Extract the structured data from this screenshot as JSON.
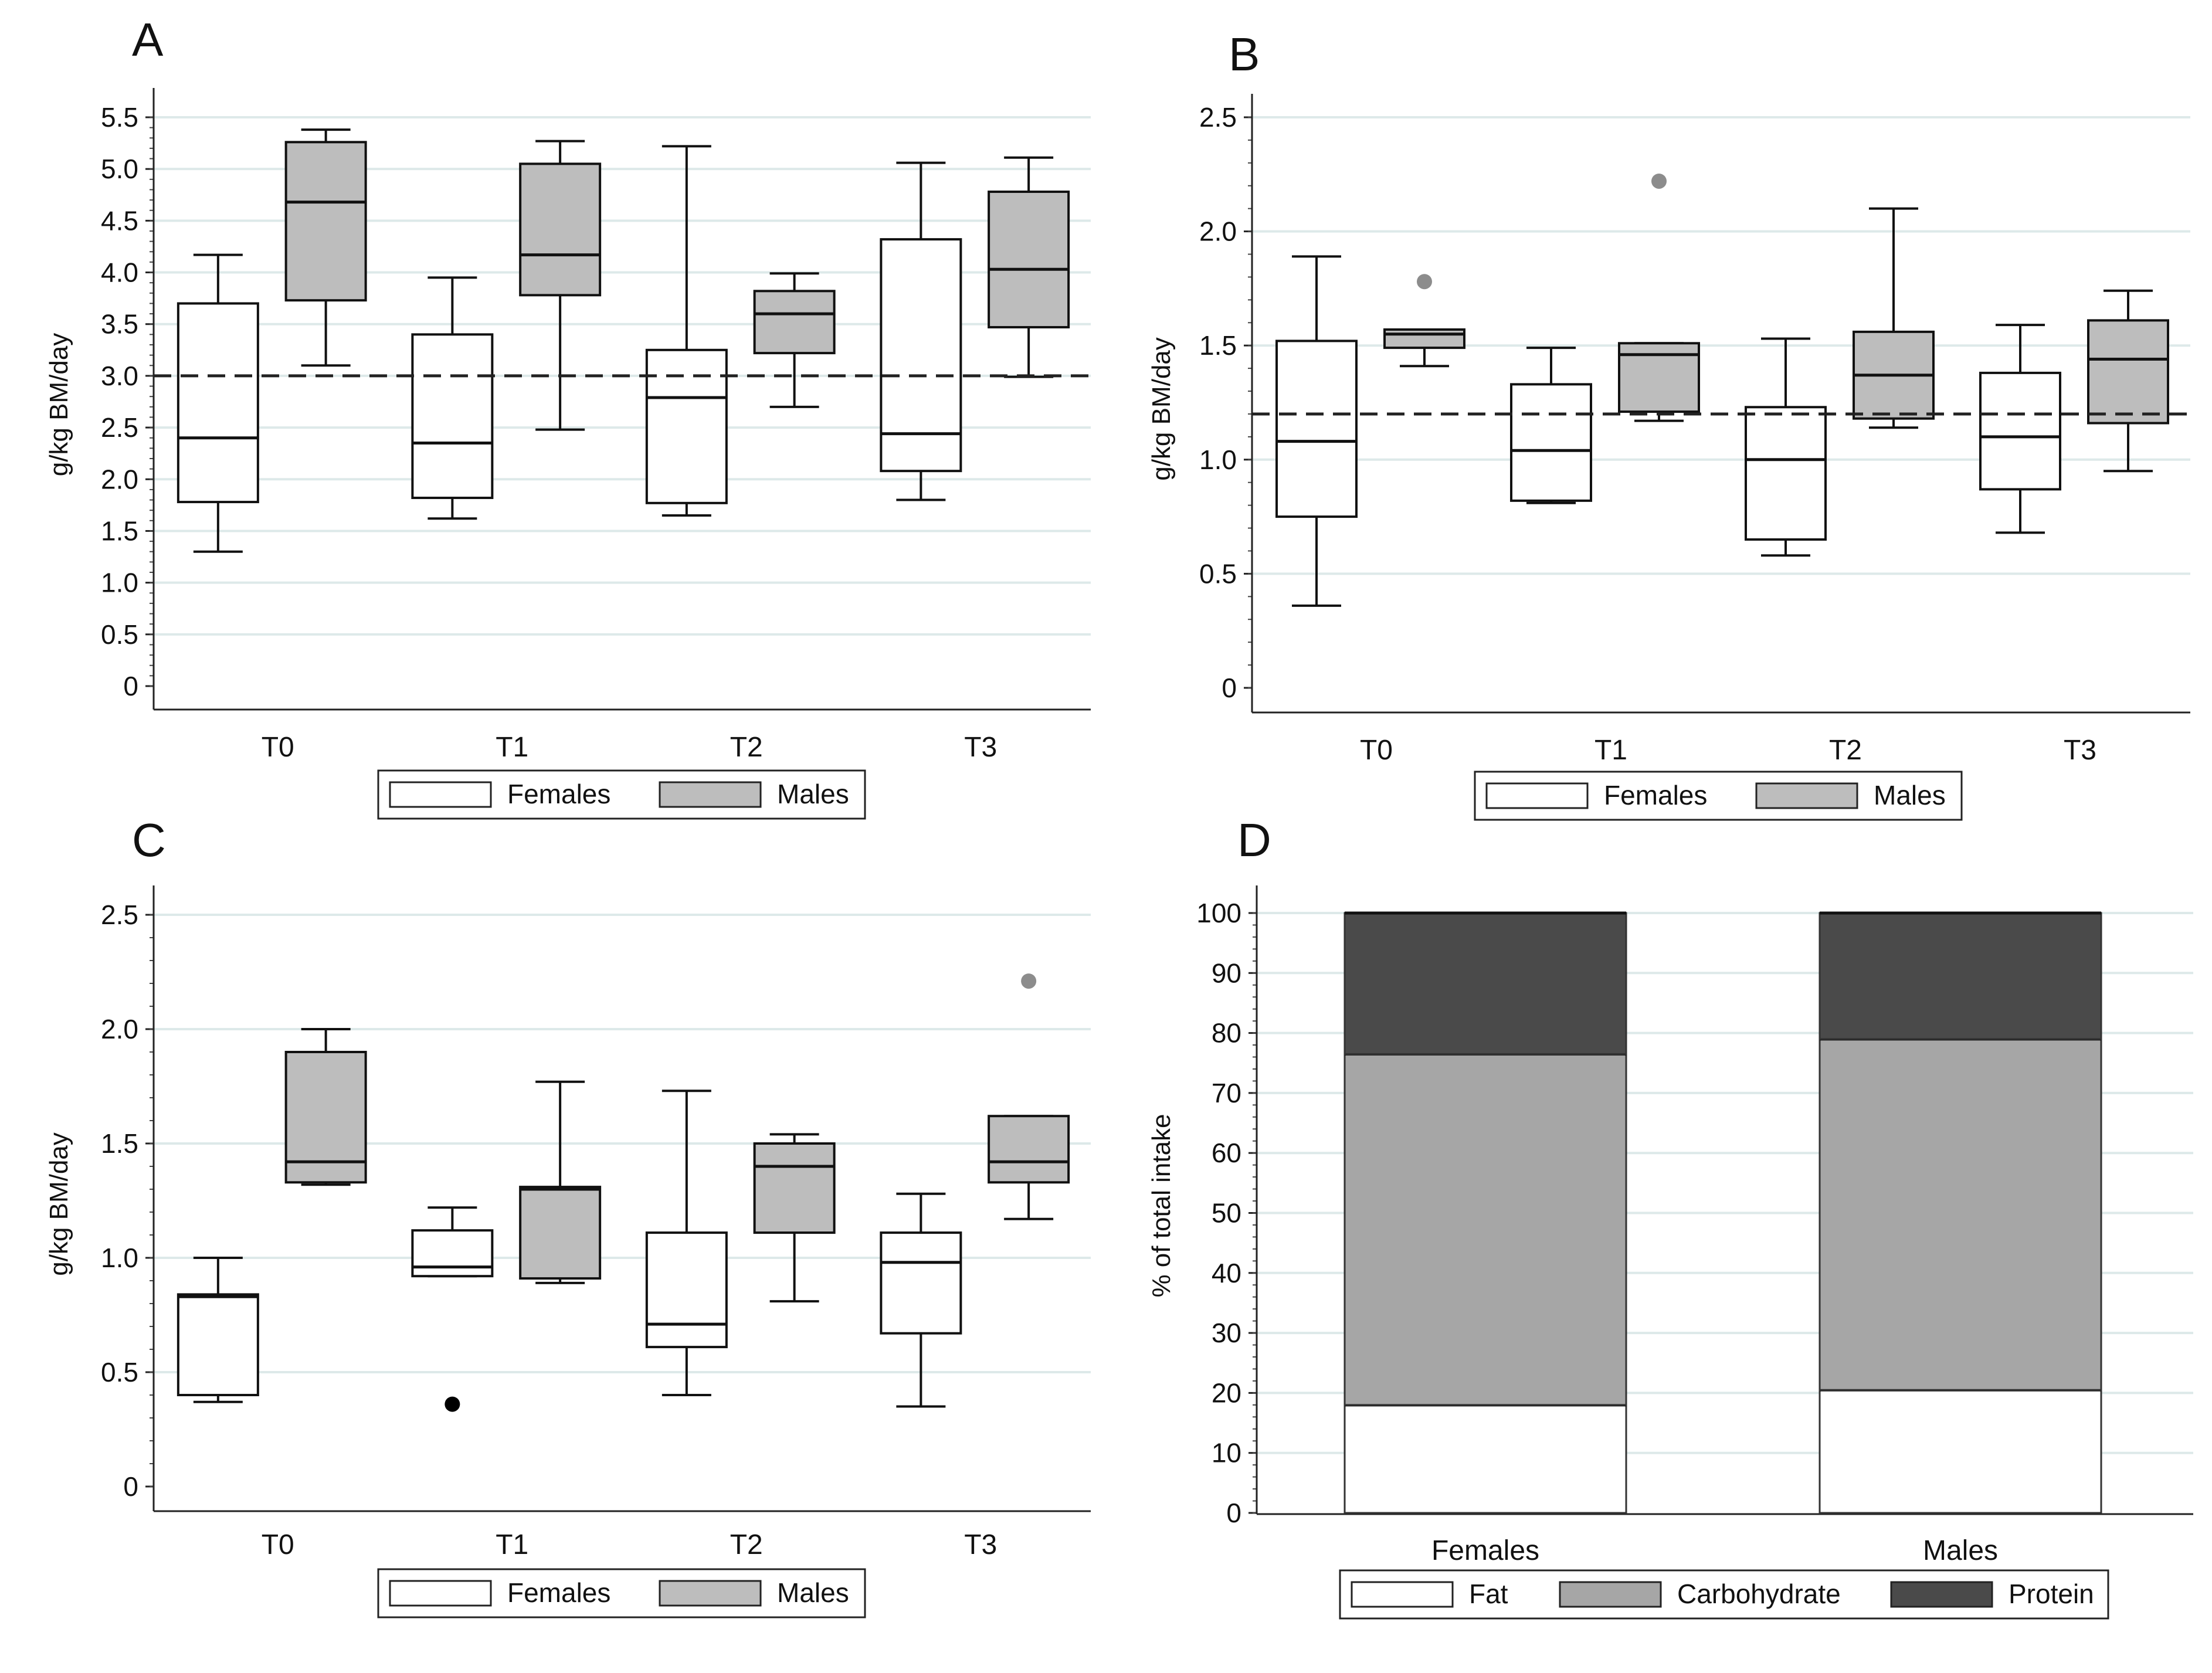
{
  "colors": {
    "female_fill": "#ffffff",
    "male_fill": "#bdbdbd",
    "fat": "#ffffff",
    "carbohydrate": "#a6a6a6",
    "protein": "#4a4a4a",
    "grid": "#dde9e9",
    "outlier_gray": "#8c8c8c",
    "outlier_black": "#000000"
  },
  "chart_data": [
    {
      "panel": "A",
      "type": "boxplot",
      "ylabel": "g/kg BM/day",
      "ylim": [
        0,
        5.5
      ],
      "yticks": [
        "0",
        "0.5",
        "1.0",
        "1.5",
        "2.0",
        "2.5",
        "3.0",
        "3.5",
        "4.0",
        "4.5",
        "5.0",
        "5.5"
      ],
      "reference_line": 3.0,
      "categories": [
        "T0",
        "T1",
        "T2",
        "T3"
      ],
      "legend": [
        "Females",
        "Males"
      ],
      "series": [
        {
          "name": "Females",
          "boxes": [
            {
              "min": 1.3,
              "q1": 1.78,
              "median": 2.4,
              "q3": 3.7,
              "max": 4.17,
              "outliers": []
            },
            {
              "min": 1.62,
              "q1": 1.82,
              "median": 2.35,
              "q3": 3.4,
              "max": 3.95,
              "outliers": []
            },
            {
              "min": 1.65,
              "q1": 1.77,
              "median": 2.79,
              "q3": 3.25,
              "max": 5.22,
              "outliers": []
            },
            {
              "min": 1.8,
              "q1": 2.08,
              "median": 2.44,
              "q3": 4.32,
              "max": 5.06,
              "outliers": []
            }
          ]
        },
        {
          "name": "Males",
          "boxes": [
            {
              "min": 3.1,
              "q1": 3.73,
              "median": 4.68,
              "q3": 5.26,
              "max": 5.38,
              "outliers": []
            },
            {
              "min": 2.48,
              "q1": 3.78,
              "median": 4.17,
              "q3": 5.05,
              "max": 5.27,
              "outliers": []
            },
            {
              "min": 2.7,
              "q1": 3.22,
              "median": 3.6,
              "q3": 3.82,
              "max": 3.99,
              "outliers": []
            },
            {
              "min": 2.99,
              "q1": 3.47,
              "median": 4.03,
              "q3": 4.78,
              "max": 5.11,
              "outliers": []
            }
          ]
        }
      ]
    },
    {
      "panel": "B",
      "type": "boxplot",
      "ylabel": "g/kg BM/day",
      "ylim": [
        0,
        2.5
      ],
      "yticks": [
        "0",
        "0.5",
        "1.0",
        "1.5",
        "2.0",
        "2.5"
      ],
      "reference_line": 1.2,
      "categories": [
        "T0",
        "T1",
        "T2",
        "T3"
      ],
      "legend": [
        "Females",
        "Males"
      ],
      "series": [
        {
          "name": "Females",
          "boxes": [
            {
              "min": 0.36,
              "q1": 0.75,
              "median": 1.08,
              "q3": 1.52,
              "max": 1.89,
              "outliers": []
            },
            {
              "min": 0.81,
              "q1": 0.82,
              "median": 1.04,
              "q3": 1.33,
              "max": 1.49,
              "outliers": []
            },
            {
              "min": 0.58,
              "q1": 0.65,
              "median": 1.0,
              "q3": 1.23,
              "max": 1.53,
              "outliers": []
            },
            {
              "min": 0.68,
              "q1": 0.87,
              "median": 1.1,
              "q3": 1.38,
              "max": 1.59,
              "outliers": []
            }
          ]
        },
        {
          "name": "Males",
          "boxes": [
            {
              "min": 1.41,
              "q1": 1.49,
              "median": 1.55,
              "q3": 1.57,
              "max": 1.57,
              "outliers": [
                1.78
              ]
            },
            {
              "min": 1.17,
              "q1": 1.21,
              "median": 1.46,
              "q3": 1.51,
              "max": 1.51,
              "outliers": [
                2.22
              ]
            },
            {
              "min": 1.14,
              "q1": 1.18,
              "median": 1.37,
              "q3": 1.56,
              "max": 2.1,
              "outliers": []
            },
            {
              "min": 0.95,
              "q1": 1.16,
              "median": 1.44,
              "q3": 1.61,
              "max": 1.74,
              "outliers": []
            }
          ]
        }
      ]
    },
    {
      "panel": "C",
      "type": "boxplot",
      "ylabel": "g/kg BM/day",
      "ylim": [
        0,
        2.5
      ],
      "yticks": [
        "0",
        "0.5",
        "1.0",
        "1.5",
        "2.0",
        "2.5"
      ],
      "reference_line": null,
      "categories": [
        "T0",
        "T1",
        "T2",
        "T3"
      ],
      "legend": [
        "Females",
        "Males"
      ],
      "series": [
        {
          "name": "Females",
          "boxes": [
            {
              "min": 0.37,
              "q1": 0.4,
              "median": 0.83,
              "q3": 0.84,
              "max": 1.0,
              "outliers": []
            },
            {
              "min": 0.92,
              "q1": 0.92,
              "median": 0.96,
              "q3": 1.12,
              "max": 1.22,
              "outliers": [
                0.36
              ]
            },
            {
              "min": 0.4,
              "q1": 0.61,
              "median": 0.71,
              "q3": 1.11,
              "max": 1.73,
              "outliers": []
            },
            {
              "min": 0.35,
              "q1": 0.67,
              "median": 0.98,
              "q3": 1.11,
              "max": 1.28,
              "outliers": []
            }
          ]
        },
        {
          "name": "Males",
          "boxes": [
            {
              "min": 1.32,
              "q1": 1.33,
              "median": 1.42,
              "q3": 1.9,
              "max": 2.0,
              "outliers": []
            },
            {
              "min": 0.89,
              "q1": 0.91,
              "median": 1.3,
              "q3": 1.31,
              "max": 1.77,
              "outliers": []
            },
            {
              "min": 0.81,
              "q1": 1.11,
              "median": 1.4,
              "q3": 1.5,
              "max": 1.54,
              "outliers": []
            },
            {
              "min": 1.17,
              "q1": 1.33,
              "median": 1.42,
              "q3": 1.62,
              "max": 1.62,
              "outliers": [
                2.21
              ]
            }
          ]
        }
      ]
    },
    {
      "panel": "D",
      "type": "stacked_bar",
      "ylabel": "% of total intake",
      "ylim": [
        0,
        100
      ],
      "yticks": [
        "0",
        "10",
        "20",
        "30",
        "40",
        "50",
        "60",
        "70",
        "80",
        "90",
        "100"
      ],
      "categories": [
        "Females",
        "Males"
      ],
      "legend": [
        "Fat",
        "Carbohydrate",
        "Protein"
      ],
      "series": [
        {
          "name": "Fat",
          "values": [
            18,
            20.5
          ]
        },
        {
          "name": "Carbohydrate",
          "values": [
            58.5,
            58.5
          ]
        },
        {
          "name": "Protein",
          "values": [
            23.5,
            21
          ]
        }
      ]
    }
  ]
}
